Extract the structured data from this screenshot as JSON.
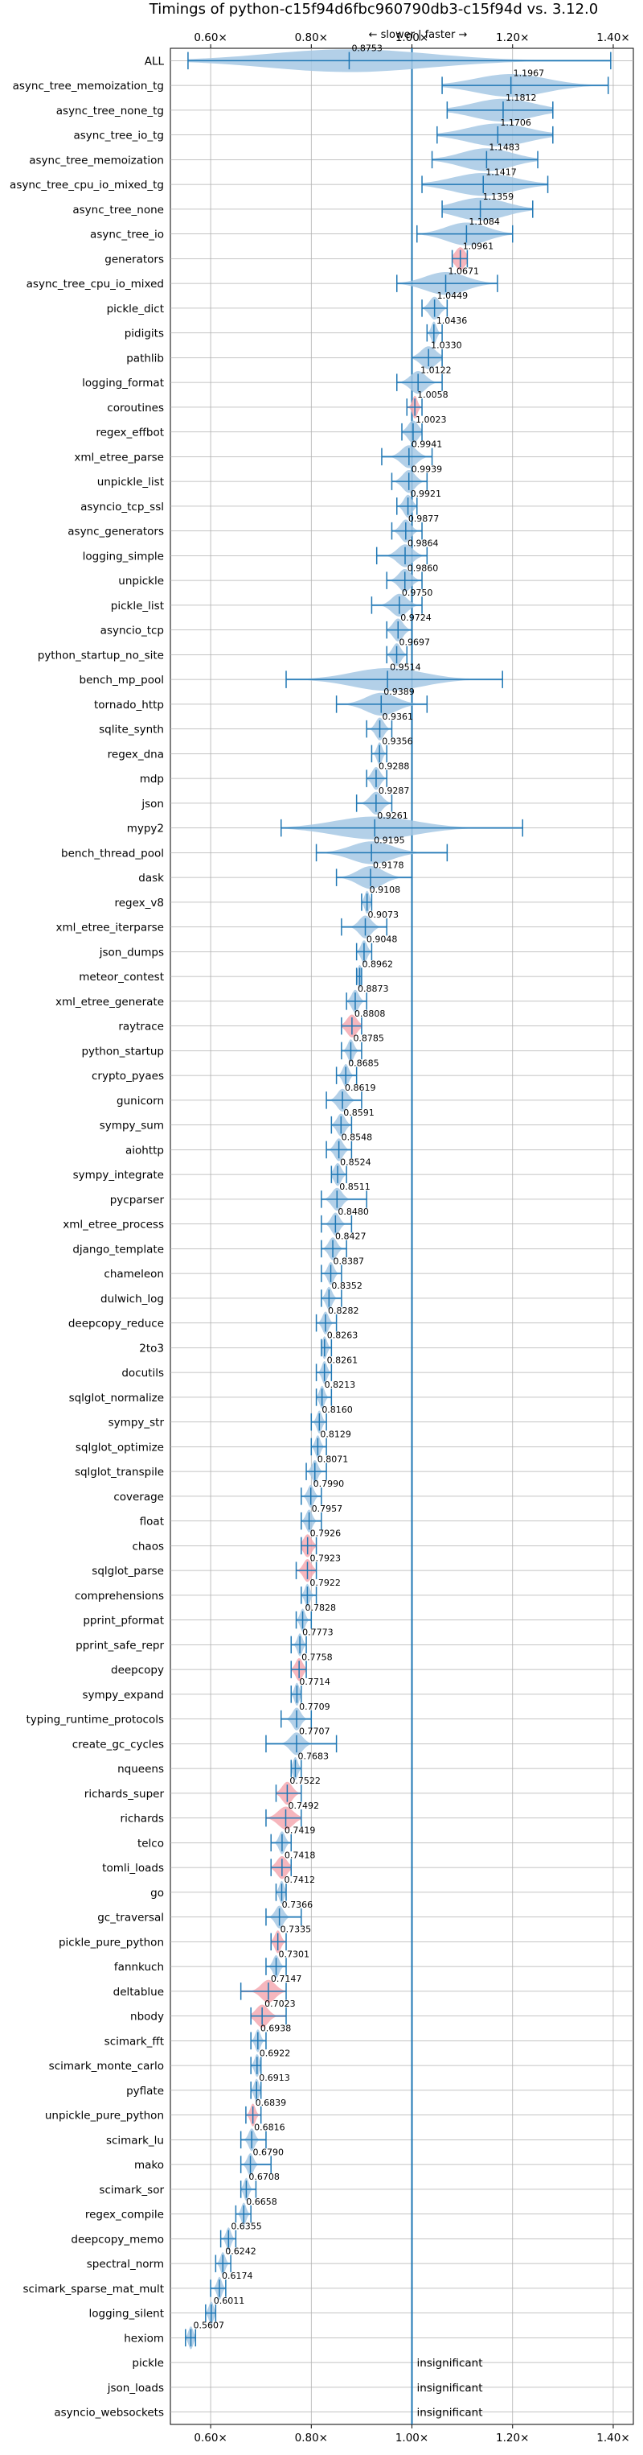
{
  "chart_data": {
    "type": "violin",
    "title": "Timings of python-c15f94d6fbc960790db3-c15f94d vs. 3.12.0",
    "direction_label": "← slower | faster →",
    "x_ticks": [
      {
        "value": 0.6,
        "label": "0.60×"
      },
      {
        "value": 0.8,
        "label": "0.80×"
      },
      {
        "value": 1.0,
        "label": "1.00×"
      },
      {
        "value": 1.2,
        "label": "1.20×"
      },
      {
        "value": 1.4,
        "label": "1.40×"
      }
    ],
    "xlim": [
      0.52,
      1.44
    ],
    "reference_line": 1.0,
    "grid": true,
    "colors": {
      "faster": "#a6c8e4",
      "slower": "#f4a9b2",
      "line": "#1f77b4",
      "mean_marker": "#f0a0a8"
    },
    "insignificant_label": "insignificant",
    "benchmarks": [
      {
        "name": "ALL",
        "mean": "0.8753",
        "center": 0.8753,
        "lo": 0.555,
        "hi": 1.395,
        "spread": 0.16,
        "color": "faster"
      },
      {
        "name": "async_tree_memoization_tg",
        "mean": "1.1967",
        "center": 1.1967,
        "lo": 1.06,
        "hi": 1.39,
        "spread": 0.07,
        "color": "faster"
      },
      {
        "name": "async_tree_none_tg",
        "mean": "1.1812",
        "center": 1.1812,
        "lo": 1.07,
        "hi": 1.28,
        "spread": 0.06,
        "color": "faster"
      },
      {
        "name": "async_tree_io_tg",
        "mean": "1.1706",
        "center": 1.1706,
        "lo": 1.05,
        "hi": 1.28,
        "spread": 0.06,
        "color": "faster"
      },
      {
        "name": "async_tree_memoization",
        "mean": "1.1483",
        "center": 1.1483,
        "lo": 1.04,
        "hi": 1.25,
        "spread": 0.05,
        "color": "faster"
      },
      {
        "name": "async_tree_cpu_io_mixed_tg",
        "mean": "1.1417",
        "center": 1.1417,
        "lo": 1.02,
        "hi": 1.27,
        "spread": 0.06,
        "color": "faster"
      },
      {
        "name": "async_tree_none",
        "mean": "1.1359",
        "center": 1.1359,
        "lo": 1.06,
        "hi": 1.24,
        "spread": 0.05,
        "color": "faster"
      },
      {
        "name": "async_tree_io",
        "mean": "1.1084",
        "center": 1.1084,
        "lo": 1.01,
        "hi": 1.2,
        "spread": 0.04,
        "color": "faster"
      },
      {
        "name": "generators",
        "mean": "1.0961",
        "center": 1.0961,
        "lo": 1.08,
        "hi": 1.11,
        "spread": 0.01,
        "color": "slower"
      },
      {
        "name": "async_tree_cpu_io_mixed",
        "mean": "1.0671",
        "center": 1.0671,
        "lo": 0.97,
        "hi": 1.17,
        "spread": 0.04,
        "color": "faster"
      },
      {
        "name": "pickle_dict",
        "mean": "1.0449",
        "center": 1.0449,
        "lo": 1.02,
        "hi": 1.07,
        "spread": 0.01,
        "color": "faster"
      },
      {
        "name": "pidigits",
        "mean": "1.0436",
        "center": 1.0436,
        "lo": 1.03,
        "hi": 1.06,
        "spread": 0.005,
        "color": "faster"
      },
      {
        "name": "pathlib",
        "mean": "1.0330",
        "center": 1.033,
        "lo": 1.0,
        "hi": 1.06,
        "spread": 0.015,
        "color": "faster"
      },
      {
        "name": "logging_format",
        "mean": "1.0122",
        "center": 1.0122,
        "lo": 0.97,
        "hi": 1.06,
        "spread": 0.015,
        "color": "faster"
      },
      {
        "name": "coroutines",
        "mean": "1.0058",
        "center": 1.0058,
        "lo": 0.99,
        "hi": 1.02,
        "spread": 0.005,
        "color": "slower"
      },
      {
        "name": "regex_effbot",
        "mean": "1.0023",
        "center": 1.0023,
        "lo": 0.98,
        "hi": 1.02,
        "spread": 0.01,
        "color": "faster"
      },
      {
        "name": "xml_etree_parse",
        "mean": "0.9941",
        "center": 0.9941,
        "lo": 0.94,
        "hi": 1.04,
        "spread": 0.015,
        "color": "faster"
      },
      {
        "name": "unpickle_list",
        "mean": "0.9939",
        "center": 0.9939,
        "lo": 0.96,
        "hi": 1.03,
        "spread": 0.012,
        "color": "faster"
      },
      {
        "name": "asyncio_tcp_ssl",
        "mean": "0.9921",
        "center": 0.9921,
        "lo": 0.97,
        "hi": 1.01,
        "spread": 0.008,
        "color": "faster"
      },
      {
        "name": "async_generators",
        "mean": "0.9877",
        "center": 0.9877,
        "lo": 0.96,
        "hi": 1.02,
        "spread": 0.01,
        "color": "faster"
      },
      {
        "name": "logging_simple",
        "mean": "0.9864",
        "center": 0.9864,
        "lo": 0.93,
        "hi": 1.03,
        "spread": 0.015,
        "color": "faster"
      },
      {
        "name": "unpickle",
        "mean": "0.9860",
        "center": 0.986,
        "lo": 0.95,
        "hi": 1.02,
        "spread": 0.012,
        "color": "faster"
      },
      {
        "name": "pickle_list",
        "mean": "0.9750",
        "center": 0.975,
        "lo": 0.92,
        "hi": 1.02,
        "spread": 0.015,
        "color": "faster"
      },
      {
        "name": "asyncio_tcp",
        "mean": "0.9724",
        "center": 0.9724,
        "lo": 0.95,
        "hi": 1.0,
        "spread": 0.01,
        "color": "faster"
      },
      {
        "name": "python_startup_no_site",
        "mean": "0.9697",
        "center": 0.9697,
        "lo": 0.95,
        "hi": 0.99,
        "spread": 0.008,
        "color": "faster"
      },
      {
        "name": "bench_mp_pool",
        "mean": "0.9514",
        "center": 0.9514,
        "lo": 0.75,
        "hi": 1.18,
        "spread": 0.07,
        "color": "faster"
      },
      {
        "name": "tornado_http",
        "mean": "0.9389",
        "center": 0.9389,
        "lo": 0.85,
        "hi": 1.03,
        "spread": 0.03,
        "color": "faster"
      },
      {
        "name": "sqlite_synth",
        "mean": "0.9361",
        "center": 0.9361,
        "lo": 0.91,
        "hi": 0.96,
        "spread": 0.008,
        "color": "faster"
      },
      {
        "name": "regex_dna",
        "mean": "0.9356",
        "center": 0.9356,
        "lo": 0.92,
        "hi": 0.95,
        "spread": 0.005,
        "color": "faster"
      },
      {
        "name": "mdp",
        "mean": "0.9288",
        "center": 0.9288,
        "lo": 0.91,
        "hi": 0.95,
        "spread": 0.008,
        "color": "faster"
      },
      {
        "name": "json",
        "mean": "0.9287",
        "center": 0.9287,
        "lo": 0.89,
        "hi": 0.96,
        "spread": 0.012,
        "color": "faster"
      },
      {
        "name": "mypy2",
        "mean": "0.9261",
        "center": 0.9261,
        "lo": 0.74,
        "hi": 1.22,
        "spread": 0.08,
        "color": "faster"
      },
      {
        "name": "bench_thread_pool",
        "mean": "0.9195",
        "center": 0.9195,
        "lo": 0.81,
        "hi": 1.07,
        "spread": 0.04,
        "color": "faster"
      },
      {
        "name": "dask",
        "mean": "0.9178",
        "center": 0.9178,
        "lo": 0.85,
        "hi": 1.0,
        "spread": 0.025,
        "color": "faster"
      },
      {
        "name": "regex_v8",
        "mean": "0.9108",
        "center": 0.9108,
        "lo": 0.9,
        "hi": 0.92,
        "spread": 0.004,
        "color": "faster"
      },
      {
        "name": "xml_etree_iterparse",
        "mean": "0.9073",
        "center": 0.9073,
        "lo": 0.86,
        "hi": 0.95,
        "spread": 0.012,
        "color": "faster"
      },
      {
        "name": "json_dumps",
        "mean": "0.9048",
        "center": 0.9048,
        "lo": 0.89,
        "hi": 0.92,
        "spread": 0.006,
        "color": "faster"
      },
      {
        "name": "meteor_contest",
        "mean": "0.8962",
        "center": 0.8962,
        "lo": 0.89,
        "hi": 0.9,
        "spread": 0.003,
        "color": "faster"
      },
      {
        "name": "xml_etree_generate",
        "mean": "0.8873",
        "center": 0.8873,
        "lo": 0.87,
        "hi": 0.91,
        "spread": 0.007,
        "color": "faster"
      },
      {
        "name": "raytrace",
        "mean": "0.8808",
        "center": 0.8808,
        "lo": 0.86,
        "hi": 0.9,
        "spread": 0.01,
        "color": "slower"
      },
      {
        "name": "python_startup",
        "mean": "0.8785",
        "center": 0.8785,
        "lo": 0.86,
        "hi": 0.9,
        "spread": 0.006,
        "color": "faster"
      },
      {
        "name": "crypto_pyaes",
        "mean": "0.8685",
        "center": 0.8685,
        "lo": 0.85,
        "hi": 0.89,
        "spread": 0.006,
        "color": "faster"
      },
      {
        "name": "gunicorn",
        "mean": "0.8619",
        "center": 0.8619,
        "lo": 0.83,
        "hi": 0.9,
        "spread": 0.01,
        "color": "faster"
      },
      {
        "name": "sympy_sum",
        "mean": "0.8591",
        "center": 0.8591,
        "lo": 0.84,
        "hi": 0.88,
        "spread": 0.008,
        "color": "faster"
      },
      {
        "name": "aiohttp",
        "mean": "0.8548",
        "center": 0.8548,
        "lo": 0.83,
        "hi": 0.88,
        "spread": 0.008,
        "color": "faster"
      },
      {
        "name": "sympy_integrate",
        "mean": "0.8524",
        "center": 0.8524,
        "lo": 0.84,
        "hi": 0.87,
        "spread": 0.007,
        "color": "faster"
      },
      {
        "name": "pycparser",
        "mean": "0.8511",
        "center": 0.8511,
        "lo": 0.82,
        "hi": 0.91,
        "spread": 0.01,
        "color": "faster"
      },
      {
        "name": "xml_etree_process",
        "mean": "0.8480",
        "center": 0.848,
        "lo": 0.82,
        "hi": 0.88,
        "spread": 0.008,
        "color": "faster"
      },
      {
        "name": "django_template",
        "mean": "0.8427",
        "center": 0.8427,
        "lo": 0.82,
        "hi": 0.87,
        "spread": 0.008,
        "color": "faster"
      },
      {
        "name": "chameleon",
        "mean": "0.8387",
        "center": 0.8387,
        "lo": 0.82,
        "hi": 0.86,
        "spread": 0.006,
        "color": "faster"
      },
      {
        "name": "dulwich_log",
        "mean": "0.8352",
        "center": 0.8352,
        "lo": 0.82,
        "hi": 0.86,
        "spread": 0.006,
        "color": "faster"
      },
      {
        "name": "deepcopy_reduce",
        "mean": "0.8282",
        "center": 0.8282,
        "lo": 0.81,
        "hi": 0.85,
        "spread": 0.006,
        "color": "faster"
      },
      {
        "name": "2to3",
        "mean": "0.8263",
        "center": 0.8263,
        "lo": 0.82,
        "hi": 0.84,
        "spread": 0.004,
        "color": "faster"
      },
      {
        "name": "docutils",
        "mean": "0.8261",
        "center": 0.8261,
        "lo": 0.81,
        "hi": 0.84,
        "spread": 0.005,
        "color": "faster"
      },
      {
        "name": "sqlglot_normalize",
        "mean": "0.8213",
        "center": 0.8213,
        "lo": 0.81,
        "hi": 0.84,
        "spread": 0.005,
        "color": "faster"
      },
      {
        "name": "sympy_str",
        "mean": "0.8160",
        "center": 0.816,
        "lo": 0.8,
        "hi": 0.83,
        "spread": 0.005,
        "color": "faster"
      },
      {
        "name": "sqlglot_optimize",
        "mean": "0.8129",
        "center": 0.8129,
        "lo": 0.8,
        "hi": 0.83,
        "spread": 0.005,
        "color": "faster"
      },
      {
        "name": "sqlglot_transpile",
        "mean": "0.8071",
        "center": 0.8071,
        "lo": 0.79,
        "hi": 0.83,
        "spread": 0.006,
        "color": "faster"
      },
      {
        "name": "coverage",
        "mean": "0.7990",
        "center": 0.799,
        "lo": 0.78,
        "hi": 0.82,
        "spread": 0.006,
        "color": "faster"
      },
      {
        "name": "float",
        "mean": "0.7957",
        "center": 0.7957,
        "lo": 0.78,
        "hi": 0.82,
        "spread": 0.006,
        "color": "faster"
      },
      {
        "name": "chaos",
        "mean": "0.7926",
        "center": 0.7926,
        "lo": 0.78,
        "hi": 0.81,
        "spread": 0.008,
        "color": "slower"
      },
      {
        "name": "sqlglot_parse",
        "mean": "0.7923",
        "center": 0.7923,
        "lo": 0.77,
        "hi": 0.81,
        "spread": 0.008,
        "color": "slower"
      },
      {
        "name": "comprehensions",
        "mean": "0.7922",
        "center": 0.7922,
        "lo": 0.78,
        "hi": 0.81,
        "spread": 0.005,
        "color": "faster"
      },
      {
        "name": "pprint_pformat",
        "mean": "0.7828",
        "center": 0.7828,
        "lo": 0.77,
        "hi": 0.8,
        "spread": 0.005,
        "color": "faster"
      },
      {
        "name": "pprint_safe_repr",
        "mean": "0.7773",
        "center": 0.7773,
        "lo": 0.76,
        "hi": 0.79,
        "spread": 0.005,
        "color": "faster"
      },
      {
        "name": "deepcopy",
        "mean": "0.7758",
        "center": 0.7758,
        "lo": 0.76,
        "hi": 0.79,
        "spread": 0.007,
        "color": "slower"
      },
      {
        "name": "sympy_expand",
        "mean": "0.7714",
        "center": 0.7714,
        "lo": 0.76,
        "hi": 0.78,
        "spread": 0.004,
        "color": "faster"
      },
      {
        "name": "typing_runtime_protocols",
        "mean": "0.7709",
        "center": 0.7709,
        "lo": 0.74,
        "hi": 0.8,
        "spread": 0.008,
        "color": "faster"
      },
      {
        "name": "create_gc_cycles",
        "mean": "0.7707",
        "center": 0.7707,
        "lo": 0.71,
        "hi": 0.85,
        "spread": 0.012,
        "color": "faster"
      },
      {
        "name": "nqueens",
        "mean": "0.7683",
        "center": 0.7683,
        "lo": 0.76,
        "hi": 0.78,
        "spread": 0.004,
        "color": "faster"
      },
      {
        "name": "richards_super",
        "mean": "0.7522",
        "center": 0.7522,
        "lo": 0.73,
        "hi": 0.78,
        "spread": 0.01,
        "color": "slower"
      },
      {
        "name": "richards",
        "mean": "0.7492",
        "center": 0.7492,
        "lo": 0.71,
        "hi": 0.78,
        "spread": 0.015,
        "color": "slower"
      },
      {
        "name": "telco",
        "mean": "0.7419",
        "center": 0.7419,
        "lo": 0.72,
        "hi": 0.76,
        "spread": 0.006,
        "color": "faster"
      },
      {
        "name": "tomli_loads",
        "mean": "0.7418",
        "center": 0.7418,
        "lo": 0.72,
        "hi": 0.76,
        "spread": 0.01,
        "color": "slower"
      },
      {
        "name": "go",
        "mean": "0.7412",
        "center": 0.7412,
        "lo": 0.73,
        "hi": 0.75,
        "spread": 0.004,
        "color": "faster"
      },
      {
        "name": "gc_traversal",
        "mean": "0.7366",
        "center": 0.7366,
        "lo": 0.71,
        "hi": 0.78,
        "spread": 0.008,
        "color": "faster"
      },
      {
        "name": "pickle_pure_python",
        "mean": "0.7335",
        "center": 0.7335,
        "lo": 0.72,
        "hi": 0.75,
        "spread": 0.006,
        "color": "slower"
      },
      {
        "name": "fannkuch",
        "mean": "0.7301",
        "center": 0.7301,
        "lo": 0.71,
        "hi": 0.75,
        "spread": 0.006,
        "color": "faster"
      },
      {
        "name": "deltablue",
        "mean": "0.7147",
        "center": 0.7147,
        "lo": 0.66,
        "hi": 0.75,
        "spread": 0.014,
        "color": "slower"
      },
      {
        "name": "nbody",
        "mean": "0.7023",
        "center": 0.7023,
        "lo": 0.68,
        "hi": 0.75,
        "spread": 0.012,
        "color": "slower"
      },
      {
        "name": "scimark_fft",
        "mean": "0.6938",
        "center": 0.6938,
        "lo": 0.68,
        "hi": 0.71,
        "spread": 0.005,
        "color": "faster"
      },
      {
        "name": "scimark_monte_carlo",
        "mean": "0.6922",
        "center": 0.6922,
        "lo": 0.68,
        "hi": 0.7,
        "spread": 0.004,
        "color": "faster"
      },
      {
        "name": "pyflate",
        "mean": "0.6913",
        "center": 0.6913,
        "lo": 0.68,
        "hi": 0.7,
        "spread": 0.004,
        "color": "faster"
      },
      {
        "name": "unpickle_pure_python",
        "mean": "0.6839",
        "center": 0.6839,
        "lo": 0.67,
        "hi": 0.7,
        "spread": 0.005,
        "color": "slower"
      },
      {
        "name": "scimark_lu",
        "mean": "0.6816",
        "center": 0.6816,
        "lo": 0.66,
        "hi": 0.71,
        "spread": 0.006,
        "color": "faster"
      },
      {
        "name": "mako",
        "mean": "0.6790",
        "center": 0.679,
        "lo": 0.66,
        "hi": 0.72,
        "spread": 0.006,
        "color": "faster"
      },
      {
        "name": "scimark_sor",
        "mean": "0.6708",
        "center": 0.6708,
        "lo": 0.66,
        "hi": 0.69,
        "spread": 0.004,
        "color": "faster"
      },
      {
        "name": "regex_compile",
        "mean": "0.6658",
        "center": 0.6658,
        "lo": 0.65,
        "hi": 0.68,
        "spread": 0.004,
        "color": "faster"
      },
      {
        "name": "deepcopy_memo",
        "mean": "0.6355",
        "center": 0.6355,
        "lo": 0.62,
        "hi": 0.65,
        "spread": 0.004,
        "color": "faster"
      },
      {
        "name": "spectral_norm",
        "mean": "0.6242",
        "center": 0.6242,
        "lo": 0.61,
        "hi": 0.64,
        "spread": 0.004,
        "color": "faster"
      },
      {
        "name": "scimark_sparse_mat_mult",
        "mean": "0.6174",
        "center": 0.6174,
        "lo": 0.6,
        "hi": 0.63,
        "spread": 0.004,
        "color": "faster"
      },
      {
        "name": "logging_silent",
        "mean": "0.6011",
        "center": 0.6011,
        "lo": 0.59,
        "hi": 0.61,
        "spread": 0.004,
        "color": "faster"
      },
      {
        "name": "hexiom",
        "mean": "0.5607",
        "center": 0.5607,
        "lo": 0.55,
        "hi": 0.57,
        "spread": 0.004,
        "color": "faster"
      },
      {
        "name": "pickle",
        "mean": null,
        "insignificant": true
      },
      {
        "name": "json_loads",
        "mean": null,
        "insignificant": true
      },
      {
        "name": "asyncio_websockets",
        "mean": null,
        "insignificant": true
      }
    ]
  }
}
